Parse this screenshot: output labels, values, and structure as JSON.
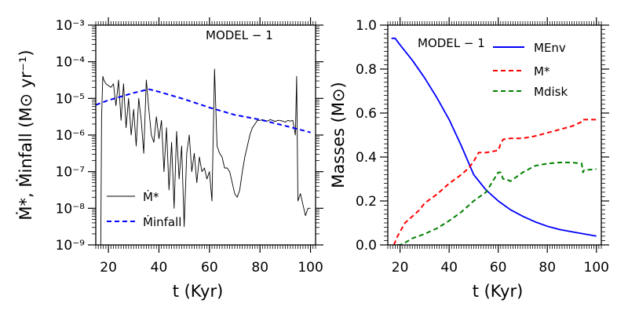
{
  "chart_data": [
    {
      "type": "line",
      "panel": "left",
      "title": "",
      "annotation": "MODEL − 1",
      "xlabel": "t (Kyr)",
      "ylabel": "Ṁ*, Ṁinfall (M⊙ yr⁻¹)",
      "xlim": [
        15,
        102
      ],
      "ylim_log10": [
        -9,
        -3
      ],
      "yscale": "log",
      "xticks": [
        20,
        40,
        60,
        80,
        100
      ],
      "yticks_log10": [
        -9,
        -8,
        -7,
        -6,
        -5,
        -4,
        -3
      ],
      "ytick_labels": [
        "10⁻⁹",
        "10⁻⁸",
        "10⁻⁷",
        "10⁻⁶",
        "10⁻⁵",
        "10⁻⁴",
        "10⁻³"
      ],
      "legend": [
        "Ṁ*",
        "Ṁinfall"
      ],
      "legend_position": "lower-left",
      "series": [
        {
          "name": "Ṁ*",
          "color": "#000000",
          "style": "solid",
          "x": [
            17,
            17.3,
            17.8,
            18.2,
            19,
            20,
            21,
            22,
            23,
            24,
            25,
            26,
            27,
            28,
            29,
            30,
            31,
            32,
            33,
            34,
            35,
            36,
            37,
            38,
            39,
            40,
            41,
            42,
            43,
            44,
            45,
            46,
            47,
            48,
            49,
            50,
            51,
            52,
            53,
            54,
            55,
            56,
            57,
            58,
            59,
            60,
            61,
            62,
            63,
            64,
            65,
            66,
            67,
            68,
            69,
            70,
            71,
            72,
            73,
            74,
            75,
            76,
            77,
            78,
            79,
            80,
            81,
            82,
            83,
            84,
            85,
            86,
            87,
            88,
            89,
            90,
            91,
            92,
            93,
            94,
            94.5,
            95,
            96,
            97,
            98,
            99,
            100
          ],
          "log10_y": [
            -9,
            -5.5,
            -4.4,
            -4.5,
            -4.6,
            -4.65,
            -4.7,
            -4.6,
            -5.2,
            -4.5,
            -5.6,
            -4.6,
            -5.8,
            -5.0,
            -6.0,
            -5.3,
            -6.3,
            -5.0,
            -5.6,
            -6.5,
            -4.5,
            -5.3,
            -6.0,
            -6.2,
            -5.5,
            -6.1,
            -5.6,
            -7.0,
            -5.8,
            -7.5,
            -6.2,
            -8.0,
            -5.9,
            -7.2,
            -6.3,
            -8.5,
            -6.5,
            -6.0,
            -7.0,
            -6.5,
            -7.3,
            -6.6,
            -7.0,
            -6.9,
            -7.2,
            -7.0,
            -7.8,
            -4.2,
            -6.3,
            -6.5,
            -6.6,
            -6.9,
            -6.9,
            -7.0,
            -7.3,
            -7.6,
            -7.7,
            -7.5,
            -7.0,
            -6.6,
            -6.3,
            -6.0,
            -5.8,
            -5.7,
            -5.6,
            -5.6,
            -5.58,
            -5.6,
            -5.62,
            -5.58,
            -5.6,
            -5.63,
            -5.6,
            -5.6,
            -5.62,
            -5.65,
            -5.6,
            -5.62,
            -5.6,
            -6.0,
            -4.4,
            -7.8,
            -7.6,
            -7.9,
            -8.2,
            -8.0,
            -8.0
          ]
        },
        {
          "name": "Ṁinfall",
          "color": "#0000ff",
          "style": "dashed",
          "x": [
            15,
            20,
            25,
            30,
            36,
            40,
            50,
            60,
            70,
            80,
            90,
            100
          ],
          "log10_y": [
            -5.18,
            -5.05,
            -4.95,
            -4.85,
            -4.75,
            -4.82,
            -5.02,
            -5.25,
            -5.45,
            -5.58,
            -5.75,
            -5.93
          ]
        }
      ]
    },
    {
      "type": "line",
      "panel": "right",
      "title": "",
      "annotation": "MODEL − 1",
      "xlabel": "t (Kyr)",
      "ylabel": "Masses (M⊙)",
      "xlim": [
        15,
        102
      ],
      "ylim": [
        0,
        1
      ],
      "yscale": "linear",
      "xticks": [
        20,
        40,
        60,
        80,
        100
      ],
      "yticks": [
        0.0,
        0.2,
        0.4,
        0.6,
        0.8,
        1.0
      ],
      "ytick_labels": [
        "0.0",
        "0.2",
        "0.4",
        "0.6",
        "0.8",
        "1.0"
      ],
      "legend": [
        "MEnv",
        "M*",
        "Mdisk"
      ],
      "legend_position": "top-right",
      "series": [
        {
          "name": "MEnv",
          "color": "#0000ff",
          "style": "solid",
          "x": [
            16.5,
            18,
            20,
            25,
            30,
            35,
            40,
            45,
            50,
            55,
            60,
            65,
            70,
            75,
            80,
            85,
            90,
            95,
            100
          ],
          "y": [
            0.94,
            0.94,
            0.91,
            0.84,
            0.76,
            0.67,
            0.57,
            0.45,
            0.32,
            0.25,
            0.2,
            0.16,
            0.13,
            0.105,
            0.085,
            0.07,
            0.06,
            0.05,
            0.04
          ]
        },
        {
          "name": "M*",
          "color": "#ff0000",
          "style": "dashed",
          "x": [
            17.5,
            19,
            20,
            22,
            25,
            28,
            30,
            35,
            40,
            45,
            48,
            50,
            52,
            55,
            60,
            61,
            62,
            65,
            70,
            75,
            80,
            85,
            90,
            94,
            94.5,
            100
          ],
          "y": [
            0.0,
            0.04,
            0.06,
            0.1,
            0.13,
            0.16,
            0.19,
            0.23,
            0.28,
            0.32,
            0.35,
            0.38,
            0.42,
            0.42,
            0.43,
            0.46,
            0.48,
            0.485,
            0.485,
            0.495,
            0.51,
            0.525,
            0.54,
            0.56,
            0.57,
            0.57
          ]
        },
        {
          "name": "Mdisk",
          "color": "#008000",
          "style": "dashed",
          "x": [
            19,
            20,
            22,
            25,
            30,
            35,
            40,
            45,
            50,
            55,
            60,
            61,
            62,
            63,
            65,
            70,
            75,
            80,
            85,
            90,
            94,
            94.5,
            95,
            100
          ],
          "y": [
            0.0,
            0.0,
            0.01,
            0.03,
            0.05,
            0.075,
            0.11,
            0.15,
            0.2,
            0.24,
            0.33,
            0.33,
            0.3,
            0.3,
            0.29,
            0.33,
            0.36,
            0.37,
            0.375,
            0.375,
            0.37,
            0.33,
            0.34,
            0.345
          ]
        }
      ]
    }
  ]
}
